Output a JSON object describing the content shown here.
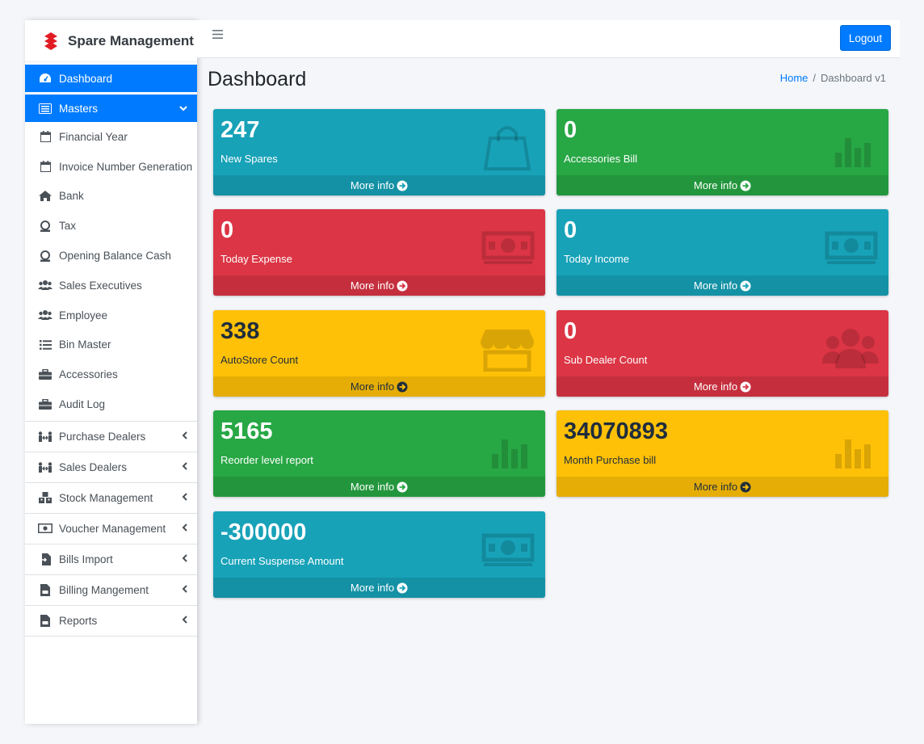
{
  "brand": {
    "name": "Spare Management"
  },
  "topbar": {
    "logout_label": "Logout",
    "menu_icon": "hamburger-icon"
  },
  "header": {
    "title": "Dashboard",
    "breadcrumb": {
      "home": "Home",
      "separator": "/",
      "current": "Dashboard v1"
    }
  },
  "sidebar": {
    "dashboard": "Dashboard",
    "masters": "Masters",
    "masters_items": [
      "Financial Year",
      "Invoice Number Generation",
      "Bank",
      "Tax",
      "Opening Balance Cash",
      "Sales Executives",
      "Employee",
      "Bin Master",
      "Accessories",
      "Audit Log"
    ],
    "groups": [
      "Purchase Dealers",
      "Sales Dealers",
      "Stock Management",
      "Voucher Management",
      "Bills Import",
      "Billing Mangement",
      "Reports"
    ]
  },
  "boxes": [
    {
      "value": "247",
      "label": "New Spares",
      "footer": "More info",
      "color": "#17a2b8",
      "icon": "shopping-bag-icon"
    },
    {
      "value": "0",
      "label": "Accessories Bill",
      "footer": "More info",
      "color": "#28a745",
      "icon": "bar-chart-icon"
    },
    {
      "value": "0",
      "label": "Today Expense",
      "footer": "More info",
      "color": "#dc3545",
      "icon": "money-bill-icon"
    },
    {
      "value": "0",
      "label": "Today Income",
      "footer": "More info",
      "color": "#17a2b8",
      "icon": "money-bill-icon"
    },
    {
      "value": "338",
      "label": "AutoStore Count",
      "footer": "More info",
      "color": "#ffc107",
      "icon": "store-icon"
    },
    {
      "value": "0",
      "label": "Sub Dealer Count",
      "footer": "More info",
      "color": "#dc3545",
      "icon": "users-icon"
    },
    {
      "value": "5165",
      "label": "Reorder level report",
      "footer": "More info",
      "color": "#28a745",
      "icon": "bar-chart-icon"
    },
    {
      "value": "34070893",
      "label": "Month Purchase bill",
      "footer": "More info",
      "color": "#ffc107",
      "icon": "bar-chart-icon"
    },
    {
      "value": "-300000",
      "label": "Current Suspense Amount",
      "footer": "More info",
      "color": "#17a2b8",
      "icon": "money-bill-icon"
    }
  ]
}
